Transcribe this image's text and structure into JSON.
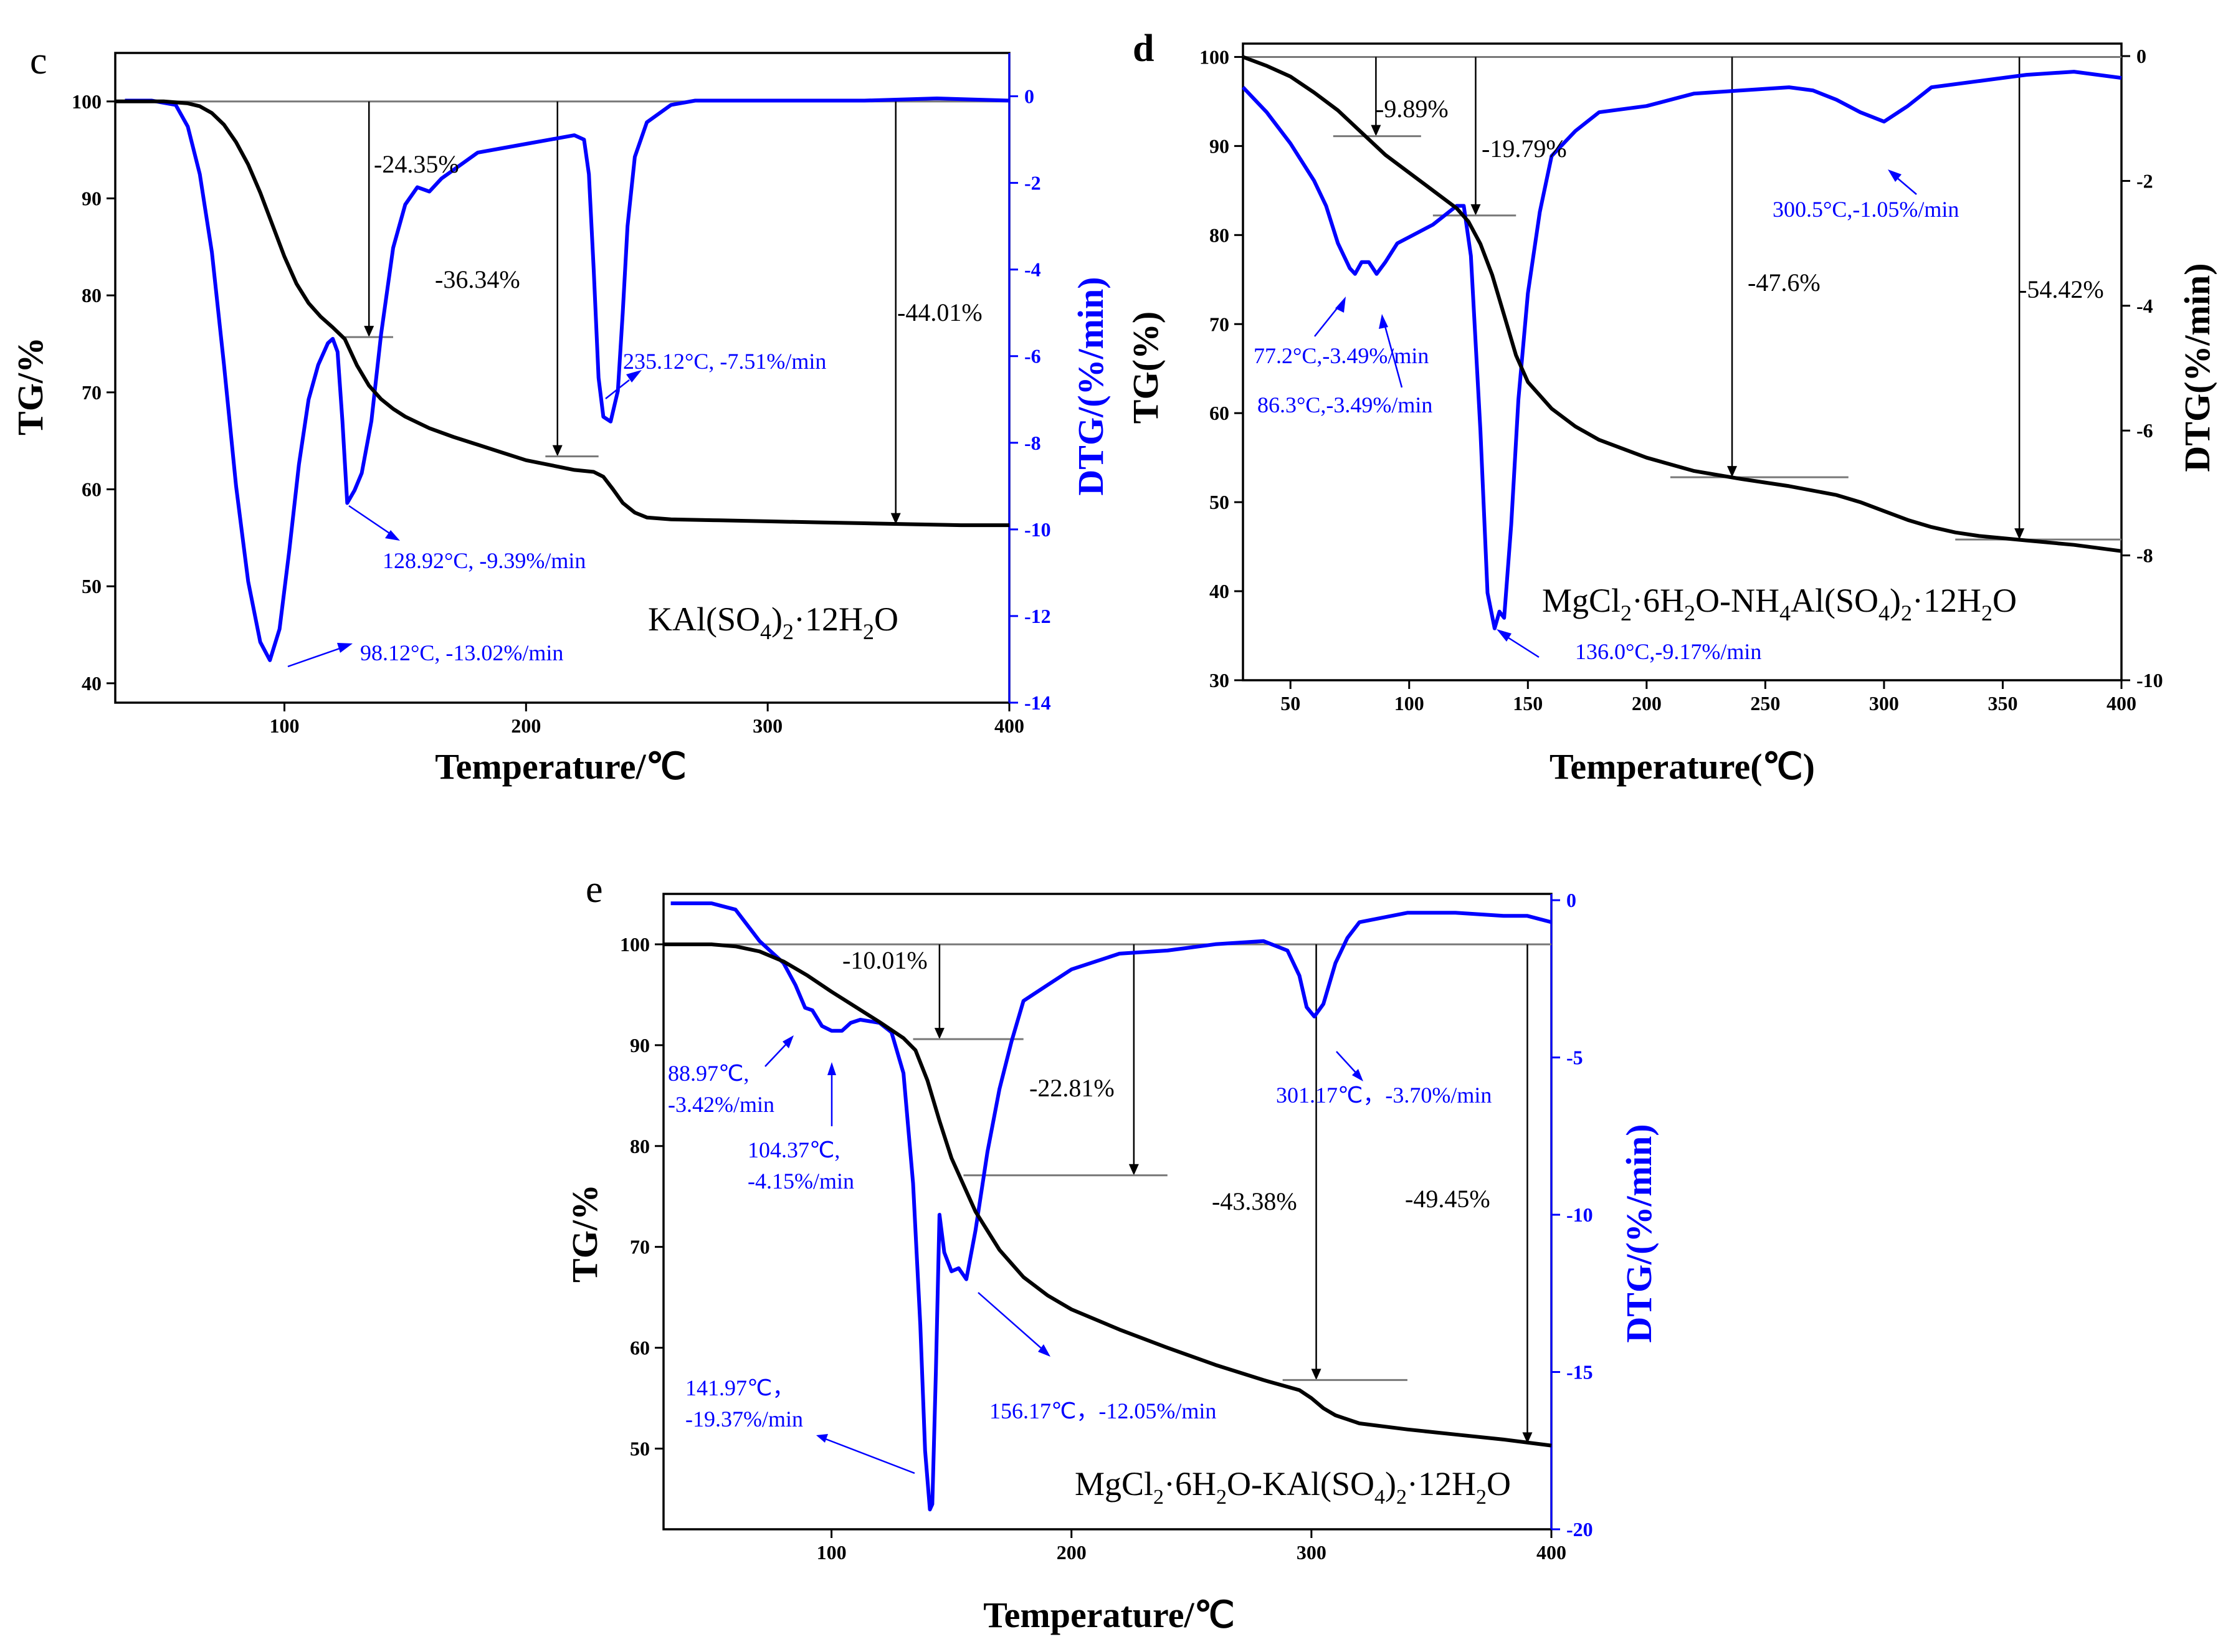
{
  "chart_data": [
    {
      "type": "line",
      "panel_label": "c",
      "xlabel": "Temperature/℃",
      "ylabel": "TG/%",
      "y2label": "DTG/(%/min)",
      "xlim": [
        30,
        400
      ],
      "ylim": [
        38,
        105
      ],
      "y2lim": [
        -14,
        1
      ],
      "xticks": [
        100,
        200,
        300,
        400
      ],
      "yticks": [
        40,
        50,
        60,
        70,
        80,
        90,
        100
      ],
      "y2ticks": [
        0,
        -2,
        -4,
        -6,
        -8,
        -10,
        -12,
        -14
      ],
      "compound": "KAl(SO4)2·12H2O",
      "compound_parts": {
        "a": "KAl(SO",
        "b": "4",
        "c": ")",
        "d": "2",
        "e": "·12H",
        "f": "2",
        "g": "O"
      },
      "series": [
        {
          "name": "TG",
          "axis": "left",
          "color": "#000000",
          "x": [
            30,
            50,
            60,
            65,
            70,
            75,
            80,
            85,
            90,
            95,
            100,
            105,
            110,
            115,
            120,
            125,
            130,
            135,
            140,
            145,
            150,
            160,
            170,
            180,
            190,
            200,
            210,
            220,
            228,
            232,
            236,
            240,
            245,
            250,
            260,
            280,
            300,
            320,
            340,
            360,
            380,
            400
          ],
          "y": [
            100,
            100,
            99.8,
            99.5,
            98.8,
            97.6,
            95.8,
            93.5,
            90.6,
            87.3,
            84.0,
            81.2,
            79.2,
            77.8,
            76.7,
            75.5,
            72.8,
            70.7,
            69.3,
            68.3,
            67.5,
            66.3,
            65.4,
            64.6,
            63.8,
            63.0,
            62.5,
            62.0,
            61.8,
            61.3,
            60.0,
            58.6,
            57.6,
            57.1,
            56.9,
            56.8,
            56.7,
            56.6,
            56.5,
            56.4,
            56.3,
            56.3
          ]
        },
        {
          "name": "DTG",
          "axis": "right",
          "color": "#0000ff",
          "x": [
            34,
            45,
            55,
            60,
            65,
            70,
            75,
            80,
            85,
            90,
            94,
            98,
            102,
            106,
            110,
            114,
            118,
            120,
            122,
            124,
            126,
            129,
            132,
            136,
            140,
            145,
            150,
            155,
            160,
            165,
            170,
            175,
            180,
            190,
            200,
            210,
            220,
            224,
            226,
            228,
            230,
            232,
            235,
            238,
            240,
            242,
            245,
            250,
            260,
            270,
            300,
            340,
            370,
            400
          ],
          "y": [
            -0.1,
            -0.1,
            -0.2,
            -0.7,
            -1.8,
            -3.6,
            -6.2,
            -9.0,
            -11.2,
            -12.6,
            -13.02,
            -12.3,
            -10.5,
            -8.5,
            -7.0,
            -6.2,
            -5.7,
            -5.6,
            -5.9,
            -7.5,
            -9.39,
            -9.1,
            -8.7,
            -7.5,
            -5.5,
            -3.5,
            -2.5,
            -2.1,
            -2.2,
            -1.9,
            -1.7,
            -1.5,
            -1.3,
            -1.2,
            -1.1,
            -1.0,
            -0.9,
            -1.0,
            -1.8,
            -4.0,
            -6.5,
            -7.4,
            -7.51,
            -6.8,
            -5.0,
            -3.0,
            -1.4,
            -0.6,
            -0.2,
            -0.1,
            -0.1,
            -0.1,
            -0.05,
            -0.1
          ]
        }
      ],
      "steps": [
        {
          "label": "-24.35%",
          "x": 135,
          "y": 75.7,
          "level_x": [
            125,
            145
          ]
        },
        {
          "label": "-36.34%",
          "x": 213,
          "y": 63.4,
          "level_x": [
            208,
            230
          ]
        },
        {
          "label": "-44.01%",
          "x": 353,
          "y": 56.4,
          "level_x": null
        }
      ],
      "annotations": [
        {
          "text": "235.12°C, -7.51%/min"
        },
        {
          "text": "128.92°C, -9.39%/min"
        },
        {
          "text": "98.12°C, -13.02%/min"
        }
      ]
    },
    {
      "type": "line",
      "panel_label": "d",
      "xlabel": "Temperature(℃)",
      "ylabel": "TG(%)",
      "y2label": "DTG(%/min)",
      "xlim": [
        30,
        400
      ],
      "ylim": [
        30,
        101.5
      ],
      "y2lim": [
        -10,
        0.2
      ],
      "xticks": [
        50,
        100,
        150,
        200,
        250,
        300,
        350,
        400
      ],
      "yticks": [
        30,
        40,
        50,
        60,
        70,
        80,
        90,
        100
      ],
      "y2ticks": [
        0,
        -2,
        -4,
        -6,
        -8,
        -10
      ],
      "compound": "MgCl2·6H2O-NH4Al(SO4)2·12H2O",
      "compound_parts": {
        "a": "MgCl",
        "b": "2",
        "c": "·6H",
        "d": "2",
        "e": "O-NH",
        "f": "4",
        "g": "Al(SO",
        "h": "4",
        "i": ")",
        "j": "2",
        "k": "·12H",
        "l": "2",
        "m": "O"
      },
      "series": [
        {
          "name": "TG",
          "axis": "left",
          "color": "#000000",
          "x": [
            30,
            40,
            50,
            60,
            70,
            80,
            90,
            100,
            110,
            120,
            125,
            130,
            135,
            140,
            145,
            150,
            160,
            170,
            180,
            200,
            220,
            240,
            260,
            280,
            290,
            300,
            310,
            320,
            330,
            340,
            360,
            380,
            400
          ],
          "y": [
            100,
            99.0,
            97.8,
            96.0,
            94.0,
            91.5,
            89.0,
            87.0,
            85.0,
            83.0,
            81.5,
            79.0,
            75.5,
            71.0,
            66.5,
            63.5,
            60.5,
            58.5,
            57.0,
            55.0,
            53.5,
            52.6,
            51.8,
            50.8,
            50.0,
            49.0,
            48.0,
            47.2,
            46.6,
            46.2,
            45.7,
            45.2,
            44.5
          ]
        },
        {
          "name": "DTG",
          "axis": "right",
          "color": "#0000ff",
          "x": [
            30,
            40,
            50,
            60,
            65,
            70,
            75,
            77.2,
            80,
            83,
            86.3,
            90,
            95,
            100,
            110,
            120,
            123,
            126,
            130,
            133,
            136,
            138,
            140,
            143,
            146,
            150,
            155,
            160,
            170,
            180,
            200,
            220,
            240,
            260,
            270,
            280,
            290,
            300,
            310,
            320,
            340,
            360,
            380,
            400
          ],
          "y": [
            -0.5,
            -0.9,
            -1.4,
            -2.0,
            -2.4,
            -3.0,
            -3.4,
            -3.49,
            -3.3,
            -3.3,
            -3.49,
            -3.3,
            -3.0,
            -2.9,
            -2.7,
            -2.4,
            -2.4,
            -3.2,
            -6.0,
            -8.6,
            -9.17,
            -8.9,
            -9.0,
            -7.5,
            -5.5,
            -3.8,
            -2.5,
            -1.6,
            -1.2,
            -0.9,
            -0.8,
            -0.6,
            -0.55,
            -0.5,
            -0.55,
            -0.7,
            -0.9,
            -1.05,
            -0.8,
            -0.5,
            -0.4,
            -0.3,
            -0.25,
            -0.35
          ]
        }
      ],
      "steps": [
        {
          "label": "-9.89%",
          "x": 86,
          "y": 91.1,
          "level_x": [
            68,
            105
          ]
        },
        {
          "label": "-19.79%",
          "x": 128,
          "y": 82.2,
          "level_x": [
            110,
            145
          ]
        },
        {
          "label": "-47.6%",
          "x": 236,
          "y": 52.8,
          "level_x": [
            210,
            285
          ]
        },
        {
          "label": "-54.42%",
          "x": 357,
          "y": 45.8,
          "level_x": [
            330,
            400
          ]
        }
      ],
      "annotations": [
        {
          "text": "300.5°C,-1.05%/min"
        },
        {
          "text": "77.2°C,-3.49%/min"
        },
        {
          "text": "86.3°C,-3.49%/min"
        },
        {
          "text": "136.0°C,-9.17%/min"
        }
      ]
    },
    {
      "type": "line",
      "panel_label": "e",
      "xlabel": "Temperature/℃",
      "ylabel": "TG/%",
      "y2label": "DTG/(%/min)",
      "xlim": [
        30,
        400
      ],
      "ylim": [
        42,
        105
      ],
      "y2lim": [
        -20,
        0.2
      ],
      "xticks": [
        100,
        200,
        300,
        400
      ],
      "yticks": [
        50,
        60,
        70,
        80,
        90,
        100
      ],
      "y2ticks": [
        0,
        -5,
        -10,
        -15,
        -20
      ],
      "compound": "MgCl2·6H2O-KAl(SO4)2·12H2O",
      "compound_parts": {
        "a": "MgCl",
        "b": "2",
        "c": "·6H",
        "d": "2",
        "e": "O-KAl(SO",
        "f": "4",
        "g": ")",
        "h": "2",
        "i": "·12H",
        "j": "2",
        "k": "O"
      },
      "series": [
        {
          "name": "TG",
          "axis": "left",
          "color": "#000000",
          "x": [
            30,
            50,
            60,
            70,
            80,
            90,
            100,
            110,
            120,
            130,
            135,
            140,
            145,
            150,
            160,
            170,
            180,
            190,
            200,
            220,
            240,
            260,
            280,
            295,
            300,
            305,
            310,
            320,
            340,
            360,
            380,
            400
          ],
          "y": [
            100,
            100,
            99.8,
            99.3,
            98.3,
            96.9,
            95.3,
            93.8,
            92.3,
            90.7,
            89.5,
            86.5,
            82.5,
            78.8,
            73.5,
            69.7,
            67.0,
            65.2,
            63.8,
            61.8,
            60.0,
            58.3,
            56.8,
            55.8,
            55.0,
            54.0,
            53.3,
            52.5,
            51.9,
            51.4,
            50.9,
            50.3
          ]
        },
        {
          "name": "DTG",
          "axis": "right",
          "color": "#0000ff",
          "x": [
            33,
            50,
            60,
            70,
            80,
            85,
            89,
            92,
            96,
            100,
            104.4,
            108,
            112,
            120,
            125,
            130,
            134,
            137,
            139,
            141,
            142,
            143.5,
            145,
            147,
            150,
            153,
            156.2,
            160,
            165,
            170,
            175,
            180,
            190,
            200,
            220,
            240,
            260,
            280,
            290,
            295,
            298,
            301.2,
            305,
            310,
            315,
            320,
            340,
            360,
            380,
            390,
            400
          ],
          "y": [
            -0.1,
            -0.1,
            -0.3,
            -1.3,
            -2.0,
            -2.7,
            -3.42,
            -3.5,
            -4.0,
            -4.15,
            -4.15,
            -3.9,
            -3.8,
            -3.9,
            -4.2,
            -5.5,
            -9.0,
            -13.5,
            -17.5,
            -19.37,
            -19.2,
            -15.0,
            -10.0,
            -11.2,
            -11.8,
            -11.7,
            -12.05,
            -10.5,
            -8.0,
            -6.0,
            -4.5,
            -3.2,
            -2.7,
            -2.2,
            -1.7,
            -1.6,
            -1.4,
            -1.3,
            -1.6,
            -2.4,
            -3.4,
            -3.7,
            -3.3,
            -2.0,
            -1.2,
            -0.7,
            -0.4,
            -0.4,
            -0.5,
            -0.5,
            -0.7
          ]
        }
      ],
      "steps": [
        {
          "label": "-10.01%",
          "x": 145,
          "y": 90.6,
          "level_x": [
            134,
            180
          ]
        },
        {
          "label": "-22.81%",
          "x": 226,
          "y": 77.1,
          "level_x": [
            155,
            240
          ]
        },
        {
          "label": "-43.38%",
          "x": 302,
          "y": 56.8,
          "level_x": [
            288,
            340
          ]
        },
        {
          "label": "-49.45%",
          "x": 390,
          "y": 50.5,
          "level_x": null
        }
      ],
      "annotations": [
        {
          "text": "88.97℃,"
        },
        {
          "text": "-3.42%/min"
        },
        {
          "text": "104.37℃,"
        },
        {
          "text": "-4.15%/min"
        },
        {
          "text": "301.17℃，-3.70%/min"
        },
        {
          "text": "141.97℃，"
        },
        {
          "text": "-19.37%/min"
        },
        {
          "text": "156.17℃，-12.05%/min"
        }
      ]
    }
  ]
}
